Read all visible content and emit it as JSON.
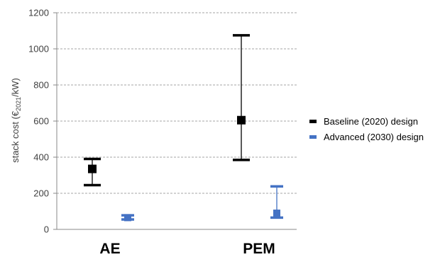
{
  "chart_data": {
    "type": "errorbar",
    "categories": [
      "AE",
      "PEM"
    ],
    "ylabel": "stack cost (€2021/kW)",
    "ylim": [
      0,
      1200
    ],
    "yticks": [
      "0",
      "200",
      "400",
      "600",
      "800",
      "1000",
      "1200"
    ],
    "grid": "horizontal dashed",
    "legend_position": "right",
    "series": [
      {
        "name": "Baseline (2020) design",
        "color": "#000000",
        "points": [
          {
            "category": "AE",
            "value": 335,
            "low": 245,
            "high": 390
          },
          {
            "category": "PEM",
            "value": 605,
            "low": 385,
            "high": 1075
          }
        ]
      },
      {
        "name": "Advanced (2030) design",
        "color": "#4472C4",
        "points": [
          {
            "category": "AE",
            "value": 65,
            "low": 55,
            "high": 78
          },
          {
            "category": "PEM",
            "value": 90,
            "low": 65,
            "high": 238
          }
        ]
      }
    ]
  }
}
